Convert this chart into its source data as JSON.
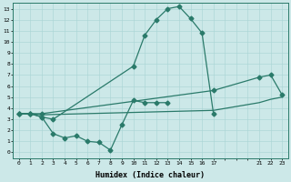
{
  "xlabel": "Humidex (Indice chaleur)",
  "bg_color": "#cce8e8",
  "line_color": "#2a7a6a",
  "xtick_labels": [
    "0",
    "1",
    "2",
    "3",
    "4",
    "5",
    "6",
    "7",
    "8",
    "9",
    "10",
    "11",
    "12",
    "13",
    "14",
    "15",
    "16",
    "17",
    "",
    "",
    "",
    "21",
    "22",
    "23"
  ],
  "xtick_positions": [
    0,
    1,
    2,
    3,
    4,
    5,
    6,
    7,
    8,
    9,
    10,
    11,
    12,
    13,
    14,
    15,
    16,
    17,
    18,
    19,
    20,
    21,
    22,
    23
  ],
  "yticks": [
    0,
    1,
    2,
    3,
    4,
    5,
    6,
    7,
    8,
    9,
    10,
    11,
    12,
    13
  ],
  "xlim": [
    -0.5,
    23.5
  ],
  "ylim": [
    -0.5,
    13.5
  ],
  "line1_x": [
    0,
    1,
    2,
    3,
    10,
    11,
    12,
    13,
    14,
    15,
    16,
    17
  ],
  "line1_y": [
    3.5,
    3.5,
    3.2,
    3.0,
    7.8,
    10.6,
    12.0,
    13.0,
    13.2,
    12.1,
    10.8,
    3.5
  ],
  "line2_x": [
    0,
    1,
    2,
    17,
    21,
    22,
    23
  ],
  "line2_y": [
    3.5,
    3.5,
    3.5,
    5.6,
    6.8,
    7.0,
    5.2
  ],
  "line3_x": [
    0,
    1,
    2,
    17,
    21,
    22,
    23
  ],
  "line3_y": [
    3.5,
    3.5,
    3.4,
    3.8,
    4.5,
    4.8,
    5.0
  ],
  "line4_x": [
    0,
    1,
    2,
    3,
    4,
    5,
    6,
    7,
    8,
    9,
    10,
    11,
    12,
    13
  ],
  "line4_y": [
    3.5,
    3.5,
    3.2,
    1.7,
    1.3,
    1.5,
    1.0,
    0.9,
    0.2,
    2.5,
    4.7,
    4.5,
    4.5,
    4.5
  ]
}
